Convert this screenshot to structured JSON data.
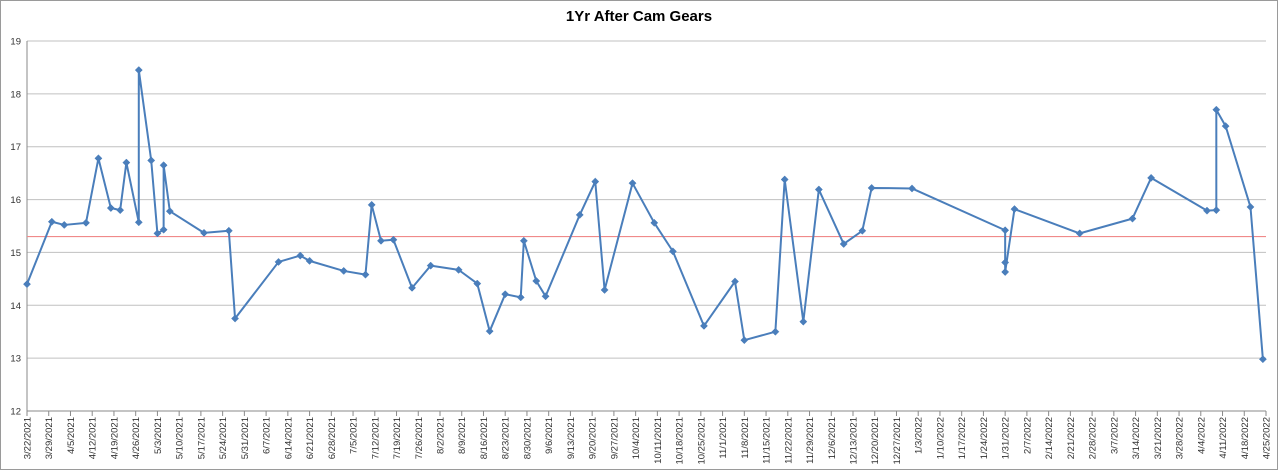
{
  "chart_data": {
    "type": "line",
    "title": "1Yr After Cam Gears",
    "xlabel": "",
    "ylabel": "",
    "ylim": [
      12,
      19
    ],
    "yticks": [
      12,
      13,
      14,
      15,
      16,
      17,
      18,
      19
    ],
    "xlim": [
      "2021-03-22",
      "2022-04-25"
    ],
    "xtick_labels": [
      "3/22/2021",
      "3/29/2021",
      "4/5/2021",
      "4/12/2021",
      "4/19/2021",
      "4/26/2021",
      "5/3/2021",
      "5/10/2021",
      "5/17/2021",
      "5/24/2021",
      "5/31/2021",
      "6/7/2021",
      "6/14/2021",
      "6/21/2021",
      "6/28/2021",
      "7/5/2021",
      "7/12/2021",
      "7/19/2021",
      "7/26/2021",
      "8/2/2021",
      "8/9/2021",
      "8/16/2021",
      "8/23/2021",
      "8/30/2021",
      "9/6/2021",
      "9/13/2021",
      "9/20/2021",
      "9/27/2021",
      "10/4/2021",
      "10/11/2021",
      "10/18/2021",
      "10/25/2021",
      "11/1/2021",
      "11/8/2021",
      "11/15/2021",
      "11/22/2021",
      "11/29/2021",
      "12/6/2021",
      "12/13/2021",
      "12/20/2021",
      "12/27/2021",
      "1/3/2022",
      "1/10/2022",
      "1/17/2022",
      "1/24/2022",
      "1/31/2022",
      "2/7/2022",
      "2/14/2022",
      "2/21/2022",
      "2/28/2022",
      "3/7/2022",
      "3/14/2022",
      "3/21/2022",
      "3/28/2022",
      "4/4/2022",
      "4/11/2022",
      "4/18/2022",
      "4/25/2022"
    ],
    "grid": true,
    "legend": "none",
    "series": [
      {
        "color": "#4a7ebb",
        "marker": "diamond",
        "points": [
          [
            "2021-03-22",
            14.4
          ],
          [
            "2021-03-30",
            15.58
          ],
          [
            "2021-04-03",
            15.52
          ],
          [
            "2021-04-10",
            15.56
          ],
          [
            "2021-04-14",
            16.78
          ],
          [
            "2021-04-18",
            15.84
          ],
          [
            "2021-04-21",
            15.8
          ],
          [
            "2021-04-23",
            16.7
          ],
          [
            "2021-04-27",
            15.57
          ],
          [
            "2021-04-27",
            18.45
          ],
          [
            "2021-05-01",
            16.74
          ],
          [
            "2021-05-03",
            15.36
          ],
          [
            "2021-05-05",
            15.43
          ],
          [
            "2021-05-05",
            16.65
          ],
          [
            "2021-05-07",
            15.78
          ],
          [
            "2021-05-18",
            15.37
          ],
          [
            "2021-05-26",
            15.41
          ],
          [
            "2021-05-28",
            13.75
          ],
          [
            "2021-06-11",
            14.82
          ],
          [
            "2021-06-18",
            14.94
          ],
          [
            "2021-06-21",
            14.84
          ],
          [
            "2021-07-02",
            14.65
          ],
          [
            "2021-07-09",
            14.58
          ],
          [
            "2021-07-11",
            15.9
          ],
          [
            "2021-07-14",
            15.22
          ],
          [
            "2021-07-18",
            15.24
          ],
          [
            "2021-07-24",
            14.33
          ],
          [
            "2021-07-30",
            14.75
          ],
          [
            "2021-08-08",
            14.67
          ],
          [
            "2021-08-14",
            14.41
          ],
          [
            "2021-08-18",
            13.51
          ],
          [
            "2021-08-23",
            14.21
          ],
          [
            "2021-08-28",
            14.15
          ],
          [
            "2021-08-29",
            15.22
          ],
          [
            "2021-09-02",
            14.46
          ],
          [
            "2021-09-05",
            14.17
          ],
          [
            "2021-09-16",
            15.71
          ],
          [
            "2021-09-21",
            16.34
          ],
          [
            "2021-09-24",
            14.29
          ],
          [
            "2021-10-03",
            16.31
          ],
          [
            "2021-10-10",
            15.56
          ],
          [
            "2021-10-16",
            15.02
          ],
          [
            "2021-10-26",
            13.61
          ],
          [
            "2021-11-05",
            14.45
          ],
          [
            "2021-11-08",
            13.34
          ],
          [
            "2021-11-18",
            13.5
          ],
          [
            "2021-11-21",
            16.38
          ],
          [
            "2021-11-27",
            13.69
          ],
          [
            "2021-12-02",
            16.19
          ],
          [
            "2021-12-10",
            15.16
          ],
          [
            "2021-12-16",
            15.41
          ],
          [
            "2021-12-19",
            16.22
          ],
          [
            "2022-01-01",
            16.21
          ],
          [
            "2022-01-31",
            15.42
          ],
          [
            "2022-01-31",
            14.81
          ],
          [
            "2022-01-31",
            14.63
          ],
          [
            "2022-02-03",
            15.82
          ],
          [
            "2022-02-24",
            15.36
          ],
          [
            "2022-03-13",
            15.64
          ],
          [
            "2022-03-19",
            16.41
          ],
          [
            "2022-04-06",
            15.79
          ],
          [
            "2022-04-09",
            15.8
          ],
          [
            "2022-04-09",
            17.7
          ],
          [
            "2022-04-12",
            17.39
          ],
          [
            "2022-04-20",
            15.86
          ],
          [
            "2022-04-24",
            12.98
          ]
        ]
      }
    ],
    "reference_line": {
      "y": 15.3,
      "color": "#f08a8a"
    }
  }
}
